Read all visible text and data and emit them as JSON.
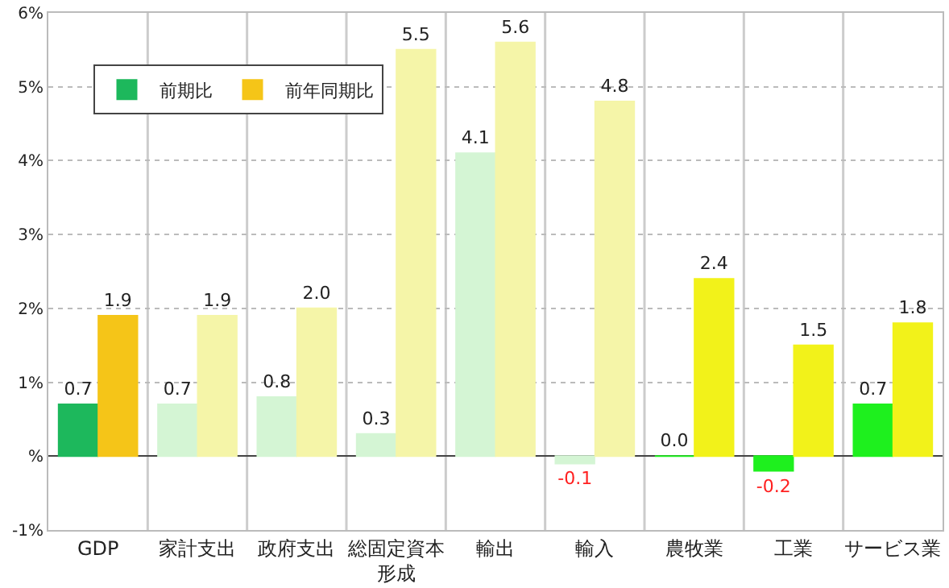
{
  "chart_data": {
    "type": "bar",
    "categories": [
      "GDP",
      "家計支出",
      "政府支出",
      "総固定資本形成",
      "輸出",
      "輸入",
      "農牧業",
      "工業",
      "サービス業"
    ],
    "series": [
      {
        "name": "前期比",
        "colors": [
          "#1db85c",
          "#d4f5d4",
          "#d4f5d4",
          "#d4f5d4",
          "#d4f5d4",
          "#d4f5d4",
          "#1ef01e",
          "#1ef01e",
          "#1ef01e"
        ],
        "values": [
          0.7,
          0.7,
          0.8,
          0.3,
          4.1,
          -0.1,
          0.0,
          -0.2,
          0.7
        ],
        "value_labels": [
          "0.7",
          "0.7",
          "0.8",
          "0.3",
          "4.1",
          "-0.1",
          "0.0",
          "-0.2",
          "0.7"
        ]
      },
      {
        "name": "前年同期比",
        "colors": [
          "#f5c518",
          "#f5f5a8",
          "#f5f5a8",
          "#f5f5a8",
          "#f5f5a8",
          "#f5f5a8",
          "#f2f21a",
          "#f2f21a",
          "#f2f21a"
        ],
        "values": [
          1.9,
          1.9,
          2.0,
          5.5,
          5.6,
          4.8,
          2.4,
          1.5,
          1.8
        ],
        "value_labels": [
          "1.9",
          "1.9",
          "2.0",
          "5.5",
          "5.6",
          "4.8",
          "2.4",
          "1.5",
          "1.8"
        ]
      }
    ],
    "ylim": [
      -1,
      6
    ],
    "yticks": [
      {
        "value": -1,
        "label": "-1%"
      },
      {
        "value": 0,
        "label": "%"
      },
      {
        "value": 1,
        "label": "1%"
      },
      {
        "value": 2,
        "label": "2%"
      },
      {
        "value": 3,
        "label": "3%"
      },
      {
        "value": 4,
        "label": "4%"
      },
      {
        "value": 5,
        "label": "5%"
      },
      {
        "value": 6,
        "label": "6%"
      }
    ],
    "grid": true,
    "legend": "top left",
    "data_labels": true
  }
}
